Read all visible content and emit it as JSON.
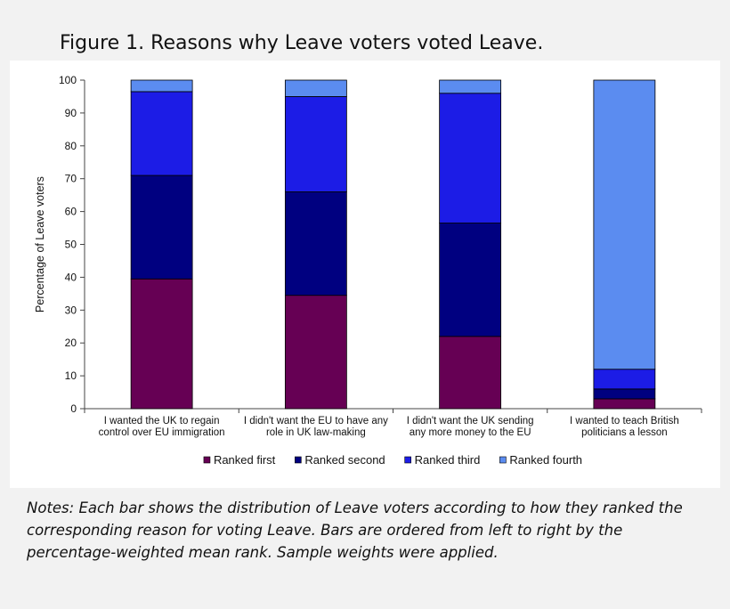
{
  "figure_title": "Figure 1. Reasons why Leave voters voted Leave.",
  "notes": [
    "Notes: Each bar shows the distribution of Leave voters according to how they ranked the",
    "corresponding reason for voting Leave. Bars are ordered from left to right by the",
    "percentage-weighted mean rank. Sample weights were applied."
  ],
  "chart_data": {
    "type": "bar",
    "stacked": true,
    "title": "",
    "xlabel": "",
    "ylabel": "Percentage of Leave voters",
    "ylim": [
      0,
      100
    ],
    "yticks": [
      0,
      10,
      20,
      30,
      40,
      50,
      60,
      70,
      80,
      90,
      100
    ],
    "grid": false,
    "legend_position": "bottom",
    "categories": [
      [
        "I wanted the UK to regain",
        "control over EU immigration"
      ],
      [
        "I didn't want the EU to have any",
        "role in UK law-making"
      ],
      [
        "I didn't want the UK sending",
        "any more money to the EU"
      ],
      [
        "I wanted to teach British",
        "politicians a lesson"
      ]
    ],
    "series": [
      {
        "name": "Ranked first",
        "color": "#660054",
        "values": [
          39.5,
          34.5,
          22.0,
          3.0
        ]
      },
      {
        "name": "Ranked second",
        "color": "#000080",
        "values": [
          31.5,
          31.5,
          34.5,
          3.0
        ]
      },
      {
        "name": "Ranked third",
        "color": "#1c1ce6",
        "values": [
          25.5,
          29.0,
          39.5,
          6.0
        ]
      },
      {
        "name": "Ranked fourth",
        "color": "#5b8cf0",
        "values": [
          3.5,
          5.0,
          4.0,
          88.0
        ]
      }
    ]
  }
}
